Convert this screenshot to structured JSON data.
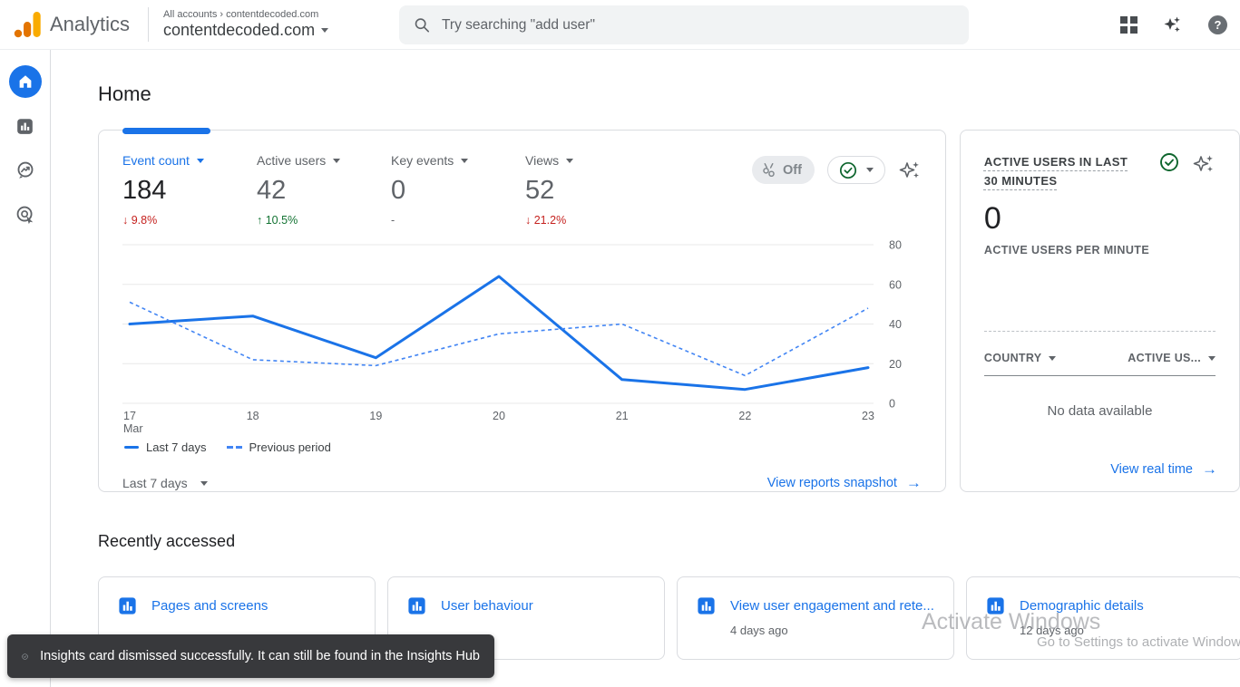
{
  "header": {
    "product": "Analytics",
    "breadcrumb_account": "All accounts",
    "breadcrumb_property": "contentdecoded.com",
    "property": "contentdecoded.com",
    "search_placeholder": "Try searching \"add user\""
  },
  "page": {
    "title": "Home"
  },
  "overview_card": {
    "metrics": [
      {
        "label": "Event count",
        "value": "184",
        "arrow": "↓",
        "delta": "9.8%"
      },
      {
        "label": "Active users",
        "value": "42",
        "arrow": "↑",
        "delta": "10.5%"
      },
      {
        "label": "Key events",
        "value": "0",
        "arrow": "",
        "delta": "-"
      },
      {
        "label": "Views",
        "value": "52",
        "arrow": "↓",
        "delta": "21.2%"
      }
    ],
    "comparison_label": "Off",
    "range_selector": "Last 7 days",
    "footer_link": "View reports snapshot",
    "footer_arrow": "→"
  },
  "chart_data": {
    "type": "line",
    "x": [
      "17",
      "18",
      "19",
      "20",
      "21",
      "22",
      "23"
    ],
    "x_month_label": "Mar",
    "series": [
      {
        "name": "Last 7 days",
        "style": "solid",
        "values": [
          40,
          44,
          23,
          64,
          12,
          7,
          18
        ]
      },
      {
        "name": "Previous period",
        "style": "dashed",
        "values": [
          51,
          22,
          19,
          35,
          40,
          14,
          48
        ]
      }
    ],
    "ylim": [
      0,
      80
    ],
    "yticks": [
      0,
      20,
      40,
      60,
      80
    ],
    "grid": true,
    "legend_position": "bottom",
    "y_axis_side": "right"
  },
  "realtime_card": {
    "title": "ACTIVE USERS IN LAST 30 MINUTES",
    "value": "0",
    "subtitle": "ACTIVE USERS PER MINUTE",
    "table_headers": [
      "COUNTRY",
      "ACTIVE US..."
    ],
    "empty_message": "No data available",
    "footer_link": "View real time",
    "footer_arrow": "→"
  },
  "recently_accessed": {
    "heading": "Recently accessed",
    "cards": [
      {
        "title": "Pages and screens",
        "timestamp": ""
      },
      {
        "title": "User behaviour",
        "timestamp": ""
      },
      {
        "title": "View user engagement and rete...",
        "timestamp": "4 days ago"
      },
      {
        "title": "Demographic details",
        "timestamp": "12 days ago"
      }
    ]
  },
  "toast": {
    "message": "Insights card dismissed successfully. It can still be found in the Insights Hub"
  },
  "watermark": {
    "line1": "Activate Windows",
    "line2": "Go to Settings to activate Window"
  },
  "colors": {
    "accent": "#1a73e8",
    "line_solid": "#1a73e8",
    "line_dashed": "#4285f4",
    "negative": "#c5221f",
    "positive": "#137333",
    "logo_amber": "#f9ab00",
    "logo_orange": "#e37400",
    "toast_bg": "#38393c"
  }
}
